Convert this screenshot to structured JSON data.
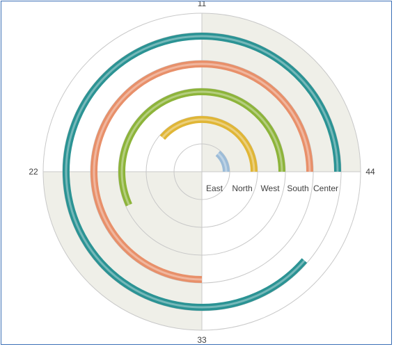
{
  "chart_data": {
    "type": "radial-bar",
    "angular_axis": {
      "ticks": [
        11,
        22,
        33,
        44
      ],
      "max": 44,
      "shaded_bands": [
        [
          0,
          11
        ],
        [
          22,
          33
        ]
      ],
      "band_color": "#efefe8"
    },
    "categories": [
      "East",
      "North",
      "West",
      "South",
      "Center"
    ],
    "values": [
      6,
      17,
      25,
      33,
      39
    ],
    "colors": [
      "#9cbcd8",
      "#e0b636",
      "#8db43a",
      "#e8906a",
      "#2b9394"
    ],
    "grid": true,
    "legend": "none"
  }
}
